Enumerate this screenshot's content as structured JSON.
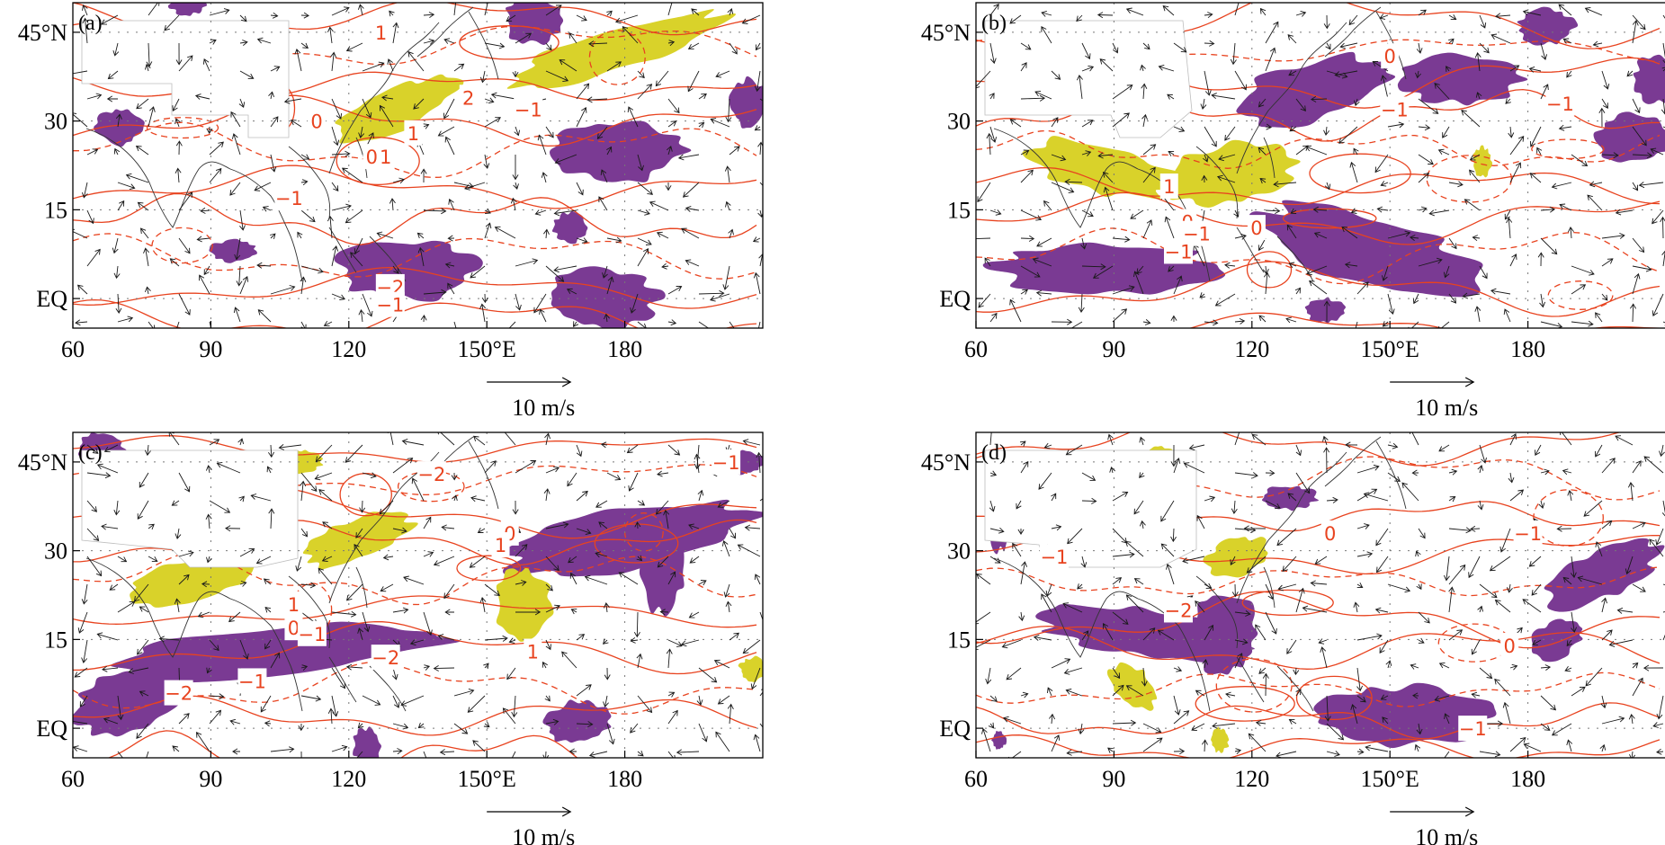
{
  "figure": {
    "colors": {
      "negative_fill": "#7a3a93",
      "positive_fill": "#d9d22a",
      "contour": "#e8431f",
      "vector": "#1a1a1a",
      "coast": "#333333",
      "grid": "#777777"
    },
    "x_ticks": [
      {
        "lon": 60,
        "label": "60"
      },
      {
        "lon": 90,
        "label": "90"
      },
      {
        "lon": 120,
        "label": "120"
      },
      {
        "lon": 150,
        "label": "150°E"
      },
      {
        "lon": 180,
        "label": "180"
      }
    ],
    "y_ticks": [
      {
        "lat": 45,
        "label": "45°N"
      },
      {
        "lat": 30,
        "label": "30"
      },
      {
        "lat": 15,
        "label": "15"
      },
      {
        "lat": 0,
        "label": "EQ"
      }
    ],
    "extent": {
      "lon": [
        60,
        210
      ],
      "lat": [
        -5,
        50
      ]
    },
    "reference_vector": {
      "label": "10 m/s",
      "speed": 10
    },
    "panels": [
      {
        "label": "(a)",
        "contour_labels": [
          {
            "text": "2",
            "lon": 146,
            "lat": 34
          },
          {
            "text": "1",
            "lon": 127,
            "lat": 45
          },
          {
            "text": "1",
            "lon": 134,
            "lat": 28
          },
          {
            "text": "0",
            "lon": 113,
            "lat": 30
          },
          {
            "text": "0",
            "lon": 125,
            "lat": 24
          },
          {
            "text": "1",
            "lon": 128,
            "lat": 24
          },
          {
            "text": "−1",
            "lon": 159,
            "lat": 32
          },
          {
            "text": "−1",
            "lon": 107,
            "lat": 17
          },
          {
            "text": "−2",
            "lon": 129,
            "lat": 2
          },
          {
            "text": "−1",
            "lon": 129,
            "lat": -1
          }
        ],
        "negative": [
          {
            "lon": 70,
            "lat": 29,
            "rx": 5,
            "ry": 3
          },
          {
            "lon": 95,
            "lat": 8,
            "rx": 5,
            "ry": 1.8
          },
          {
            "lon": 133,
            "lat": 5,
            "rx": 15,
            "ry": 5
          },
          {
            "lon": 179,
            "lat": 25,
            "rx": 14,
            "ry": 5
          },
          {
            "lon": 168,
            "lat": 12,
            "rx": 3.5,
            "ry": 2.5
          },
          {
            "lon": 175,
            "lat": 0,
            "rx": 12,
            "ry": 5
          },
          {
            "lon": 160,
            "lat": 47,
            "rx": 6,
            "ry": 4
          },
          {
            "lon": 207,
            "lat": 33,
            "rx": 4,
            "ry": 4
          },
          {
            "lon": 85,
            "lat": 50,
            "rx": 4,
            "ry": 2
          }
        ],
        "positive": [
          {
            "lon": 130,
            "lat": 32,
            "rx": 14,
            "ry": 3.5,
            "rot": -22
          },
          {
            "lon": 178,
            "lat": 42,
            "rx": 24,
            "ry": 3.5,
            "rot": -17
          }
        ]
      },
      {
        "label": "(b)",
        "contour_labels": [
          {
            "text": "1",
            "lon": 102,
            "lat": 19
          },
          {
            "text": "0",
            "lon": 106,
            "lat": 13
          },
          {
            "text": "0",
            "lon": 121,
            "lat": 12
          },
          {
            "text": "−1",
            "lon": 108,
            "lat": 11
          },
          {
            "text": "−1",
            "lon": 104,
            "lat": 8
          },
          {
            "text": "0",
            "lon": 150,
            "lat": 41
          },
          {
            "text": "−1",
            "lon": 151,
            "lat": 32
          },
          {
            "text": "−1",
            "lon": 187,
            "lat": 33
          }
        ],
        "negative": [
          {
            "lon": 133,
            "lat": 35,
            "rx": 17,
            "ry": 5,
            "rot": -15
          },
          {
            "lon": 165,
            "lat": 37,
            "rx": 13,
            "ry": 4
          },
          {
            "lon": 184,
            "lat": 46,
            "rx": 6,
            "ry": 3
          },
          {
            "lon": 203,
            "lat": 27,
            "rx": 8,
            "ry": 4
          },
          {
            "lon": 208,
            "lat": 37,
            "rx": 5,
            "ry": 4
          },
          {
            "lon": 88,
            "lat": 5,
            "rx": 24,
            "ry": 4
          },
          {
            "lon": 145,
            "lat": 8,
            "rx": 24,
            "ry": 6,
            "rot": 15
          },
          {
            "lon": 136,
            "lat": -2,
            "rx": 4,
            "ry": 2
          }
        ],
        "positive": [
          {
            "lon": 87,
            "lat": 22,
            "rx": 17,
            "ry": 4,
            "rot": 12
          },
          {
            "lon": 115,
            "lat": 21,
            "rx": 14,
            "ry": 5,
            "rot": -10
          },
          {
            "lon": 170,
            "lat": 23,
            "rx": 2,
            "ry": 2.5
          }
        ]
      },
      {
        "label": "(c)",
        "contour_labels": [
          {
            "text": "−2",
            "lon": 138,
            "lat": 43
          },
          {
            "text": "0",
            "lon": 155,
            "lat": 33
          },
          {
            "text": "1",
            "lon": 153,
            "lat": 31
          },
          {
            "text": "1",
            "lon": 160,
            "lat": 13
          },
          {
            "text": "1",
            "lon": 108,
            "lat": 21
          },
          {
            "text": "0",
            "lon": 108,
            "lat": 17
          },
          {
            "text": "−1",
            "lon": 112,
            "lat": 16
          },
          {
            "text": "−2",
            "lon": 128,
            "lat": 12
          },
          {
            "text": "−2",
            "lon": 83,
            "lat": 6
          },
          {
            "text": "−1",
            "lon": 99,
            "lat": 8
          },
          {
            "text": "−1",
            "lon": 202,
            "lat": 45
          }
        ],
        "negative": [
          {
            "lon": 104,
            "lat": 13,
            "rx": 37,
            "ry": 4,
            "rot": -5
          },
          {
            "lon": 72,
            "lat": 5,
            "rx": 12,
            "ry": 5,
            "rot": -20
          },
          {
            "lon": 181,
            "lat": 32,
            "rx": 27,
            "ry": 5,
            "rot": -10
          },
          {
            "lon": 188,
            "lat": 28,
            "rx": 5,
            "ry": 8
          },
          {
            "lon": 170,
            "lat": 1,
            "rx": 7,
            "ry": 3.5,
            "rot": -10
          },
          {
            "lon": 124,
            "lat": -3,
            "rx": 3,
            "ry": 3
          },
          {
            "lon": 206,
            "lat": 45,
            "rx": 4,
            "ry": 2
          },
          {
            "lon": 66,
            "lat": 47,
            "rx": 5,
            "ry": 3
          }
        ],
        "positive": [
          {
            "lon": 86,
            "lat": 25,
            "rx": 14,
            "ry": 3.5,
            "rot": -12
          },
          {
            "lon": 122,
            "lat": 32,
            "rx": 12,
            "ry": 3.5,
            "rot": -20
          },
          {
            "lon": 158,
            "lat": 21,
            "rx": 6,
            "ry": 6
          },
          {
            "lon": 110,
            "lat": 45,
            "rx": 4,
            "ry": 2
          },
          {
            "lon": 208,
            "lat": 10,
            "rx": 3,
            "ry": 2
          }
        ]
      },
      {
        "label": "(d)",
        "contour_labels": [
          {
            "text": "−1",
            "lon": 77,
            "lat": 29
          },
          {
            "text": "−2",
            "lon": 104,
            "lat": 20
          },
          {
            "text": "0",
            "lon": 137,
            "lat": 33
          },
          {
            "text": "−1",
            "lon": 180,
            "lat": 33
          },
          {
            "text": "0",
            "lon": 176,
            "lat": 14
          },
          {
            "text": "−1",
            "lon": 168,
            "lat": 0
          }
        ],
        "negative": [
          {
            "lon": 97,
            "lat": 16,
            "rx": 22,
            "ry": 4,
            "rot": 8
          },
          {
            "lon": 114,
            "lat": 16,
            "rx": 7,
            "ry": 7
          },
          {
            "lon": 153,
            "lat": 2,
            "rx": 19,
            "ry": 5
          },
          {
            "lon": 196,
            "lat": 26,
            "rx": 13,
            "ry": 4,
            "rot": -25
          },
          {
            "lon": 186,
            "lat": 15,
            "rx": 6,
            "ry": 3,
            "rot": -30
          },
          {
            "lon": 128,
            "lat": 39,
            "rx": 6,
            "ry": 2
          },
          {
            "lon": 65,
            "lat": 37,
            "rx": 3,
            "ry": 7
          },
          {
            "lon": 65,
            "lat": -2,
            "rx": 1.5,
            "ry": 1.5
          }
        ],
        "positive": [
          {
            "lon": 94,
            "lat": 7,
            "rx": 6,
            "ry": 3,
            "rot": 45
          },
          {
            "lon": 117,
            "lat": 29,
            "rx": 7,
            "ry": 3,
            "rot": -15
          },
          {
            "lon": 100,
            "lat": 46,
            "rx": 3,
            "ry": 1.5
          },
          {
            "lon": 113,
            "lat": -2,
            "rx": 2,
            "ry": 2
          }
        ]
      }
    ]
  }
}
